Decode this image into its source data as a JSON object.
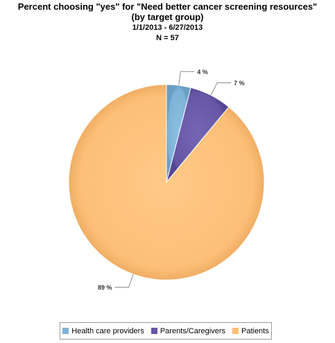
{
  "chart_data": {
    "type": "pie",
    "title": "Percent choosing \"yes\" for \"Need better cancer screening resources\"\n(by target group)",
    "subtitle_lines": [
      "1/1/2013 - 6/27/2013",
      "N = 57"
    ],
    "categories": [
      "Health care providers",
      "Parents/Caregivers",
      "Patients"
    ],
    "values": [
      4,
      7,
      89
    ],
    "data_labels": [
      "4 %",
      "7 %",
      "89 %"
    ],
    "colors": [
      "#7eb2d6",
      "#6656a6",
      "#fdbf78"
    ],
    "legend_position": "bottom"
  }
}
